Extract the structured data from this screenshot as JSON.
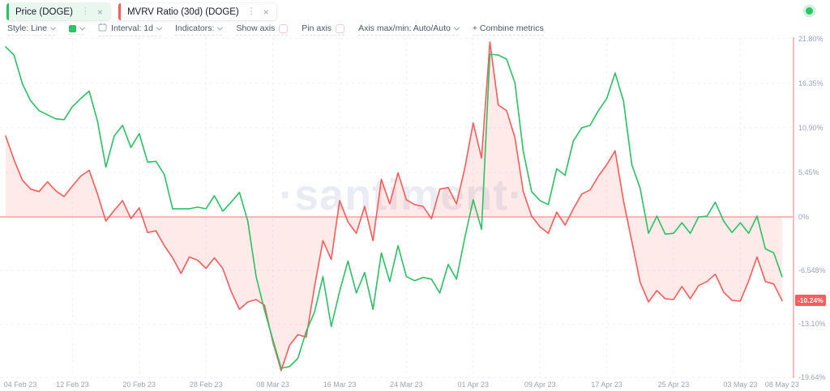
{
  "tabs": [
    {
      "label": "Price (DOGE)",
      "stripe_color": "#2bc164",
      "bg": "#e9f8ef",
      "active": true
    },
    {
      "label": "MVRV Ratio (30d) (DOGE)",
      "stripe_color": "#ff5b5b",
      "bg": "#ffffff",
      "active": false
    }
  ],
  "icons": {
    "kebab": "⋮",
    "close": "×"
  },
  "status_dot_color": "#2ec468",
  "toolbar": {
    "style_label": "Style: Line",
    "swatch_color": "#2bc164",
    "interval_label": "Interval: 1d",
    "indicators_label": "Indicators:",
    "show_axis_label": "Show axis",
    "pin_axis_label": "Pin axis",
    "axis_maxmin_label": "Axis max/min: Auto/Auto",
    "combine_label": "+ Combine metrics"
  },
  "watermark": "·santiment·",
  "current_value_badge": {
    "text": "-10.24%",
    "value": -10.24,
    "color": "#ff5b5b"
  },
  "chart_data": {
    "type": "line",
    "title": "Price (DOGE) vs MVRV Ratio (30d) (DOGE), % change, 04 Feb 23 - 08 May 23",
    "unit": "%",
    "grid": true,
    "zero_line": true,
    "colors": {
      "zero_line": "#ff9d9d",
      "axis_line": "#ffbcc0",
      "grid": "#edf0f5",
      "mvrv_fill": "rgba(255,91,91,0.13)"
    },
    "x": [
      "2023-02-04",
      "2023-02-05",
      "2023-02-06",
      "2023-02-07",
      "2023-02-08",
      "2023-02-09",
      "2023-02-10",
      "2023-02-11",
      "2023-02-12",
      "2023-02-13",
      "2023-02-14",
      "2023-02-15",
      "2023-02-16",
      "2023-02-17",
      "2023-02-18",
      "2023-02-19",
      "2023-02-20",
      "2023-02-21",
      "2023-02-22",
      "2023-02-23",
      "2023-02-24",
      "2023-02-25",
      "2023-02-26",
      "2023-02-27",
      "2023-02-28",
      "2023-03-01",
      "2023-03-02",
      "2023-03-03",
      "2023-03-04",
      "2023-03-05",
      "2023-03-06",
      "2023-03-07",
      "2023-03-08",
      "2023-03-09",
      "2023-03-10",
      "2023-03-11",
      "2023-03-12",
      "2023-03-13",
      "2023-03-14",
      "2023-03-15",
      "2023-03-16",
      "2023-03-17",
      "2023-03-18",
      "2023-03-19",
      "2023-03-20",
      "2023-03-21",
      "2023-03-22",
      "2023-03-23",
      "2023-03-24",
      "2023-03-25",
      "2023-03-26",
      "2023-03-27",
      "2023-03-28",
      "2023-03-29",
      "2023-03-30",
      "2023-03-31",
      "2023-04-01",
      "2023-04-02",
      "2023-04-03",
      "2023-04-04",
      "2023-04-05",
      "2023-04-06",
      "2023-04-07",
      "2023-04-08",
      "2023-04-09",
      "2023-04-10",
      "2023-04-11",
      "2023-04-12",
      "2023-04-13",
      "2023-04-14",
      "2023-04-15",
      "2023-04-16",
      "2023-04-17",
      "2023-04-18",
      "2023-04-19",
      "2023-04-20",
      "2023-04-21",
      "2023-04-22",
      "2023-04-23",
      "2023-04-24",
      "2023-04-25",
      "2023-04-26",
      "2023-04-27",
      "2023-04-28",
      "2023-04-29",
      "2023-04-30",
      "2023-05-01",
      "2023-05-02",
      "2023-05-03",
      "2023-05-04",
      "2023-05-05",
      "2023-05-06",
      "2023-05-07",
      "2023-05-08"
    ],
    "series": [
      {
        "name": "Price (DOGE)",
        "color": "#2bc164",
        "fill_to_zero": false,
        "values": [
          20.8,
          19.8,
          16.3,
          14.2,
          13.0,
          12.5,
          12.0,
          11.9,
          13.5,
          14.5,
          15.4,
          11.7,
          6.1,
          9.9,
          11.2,
          8.5,
          10.2,
          6.7,
          6.8,
          5.2,
          1.0,
          1.0,
          1.0,
          1.2,
          1.0,
          2.6,
          0.7,
          1.8,
          3.0,
          -0.5,
          -7.3,
          -11.4,
          -15.0,
          -18.5,
          -18.3,
          -17.3,
          -14.0,
          -11.6,
          -7.3,
          -13.4,
          -9.1,
          -5.4,
          -9.3,
          -6.8,
          -11.3,
          -4.4,
          -7.9,
          -3.5,
          -7.3,
          -7.8,
          -7.4,
          -7.6,
          -9.3,
          -5.8,
          -7.6,
          -2.5,
          2.1,
          -1.5,
          19.9,
          19.8,
          19.3,
          16.4,
          8.0,
          3.1,
          2.0,
          1.5,
          5.9,
          5.1,
          9.3,
          10.9,
          11.2,
          13.0,
          14.5,
          17.6,
          14.2,
          6.4,
          3.5,
          -2.0,
          0.1,
          -2.1,
          -2.0,
          -0.7,
          -2.0,
          0.0,
          0.1,
          1.8,
          -0.5,
          -1.9,
          -0.7,
          -2.0,
          0.1,
          -3.9,
          -4.4,
          -7.3
        ]
      },
      {
        "name": "MVRV Ratio (30d) (DOGE)",
        "color": "#ff5b5b",
        "fill_to_zero": true,
        "values": [
          9.9,
          7.0,
          4.5,
          3.4,
          3.1,
          4.3,
          3.2,
          2.5,
          3.8,
          5.0,
          5.7,
          2.8,
          -0.5,
          0.8,
          2.0,
          -0.2,
          1.1,
          -1.9,
          -1.7,
          -3.5,
          -5.0,
          -6.9,
          -4.9,
          -5.3,
          -6.3,
          -5.0,
          -6.3,
          -9.1,
          -11.3,
          -10.4,
          -10.1,
          -10.8,
          -15.3,
          -18.8,
          -15.7,
          -14.4,
          -14.7,
          -8.5,
          -2.9,
          -5.2,
          2.0,
          -0.6,
          -2.0,
          1.3,
          -2.9,
          4.6,
          1.6,
          5.4,
          2.1,
          1.5,
          1.3,
          -0.2,
          3.4,
          3.6,
          1.6,
          6.0,
          11.5,
          7.2,
          21.4,
          13.7,
          13.0,
          9.7,
          3.1,
          0.1,
          -1.2,
          -2.0,
          0.6,
          -1.0,
          1.0,
          2.8,
          3.3,
          5.0,
          6.4,
          8.1,
          2.0,
          -3.0,
          -8.0,
          -10.4,
          -9.0,
          -10.0,
          -10.1,
          -8.5,
          -10.0,
          -8.4,
          -7.9,
          -7.0,
          -9.2,
          -10.2,
          -10.3,
          -7.8,
          -4.9,
          -7.9,
          -8.2,
          -10.24
        ]
      }
    ],
    "y_axis": {
      "side": "right",
      "range": [
        -19.64,
        21.8
      ],
      "ticks": [
        21.8,
        16.35,
        10.9,
        5.45,
        0,
        -6.548,
        -13.1,
        -19.64
      ],
      "tick_labels": [
        "21.80%",
        "16.35%",
        "10.90%",
        "5.45%",
        "0%",
        "-6.548%",
        "-13.10%",
        "-19.64%"
      ],
      "current_value_label": "-10.24%"
    },
    "x_axis": {
      "tick_labels": [
        "04 Feb 23",
        "12 Feb 23",
        "20 Feb 23",
        "28 Feb 23",
        "08 Mar 23",
        "16 Mar 23",
        "24 Mar 23",
        "01 Apr 23",
        "09 Apr 23",
        "17 Apr 23",
        "25 Apr 23",
        "03 May 23",
        "08 May 23"
      ],
      "tick_days": [
        0,
        8,
        16,
        24,
        32,
        40,
        48,
        56,
        64,
        72,
        80,
        88,
        93
      ]
    }
  }
}
